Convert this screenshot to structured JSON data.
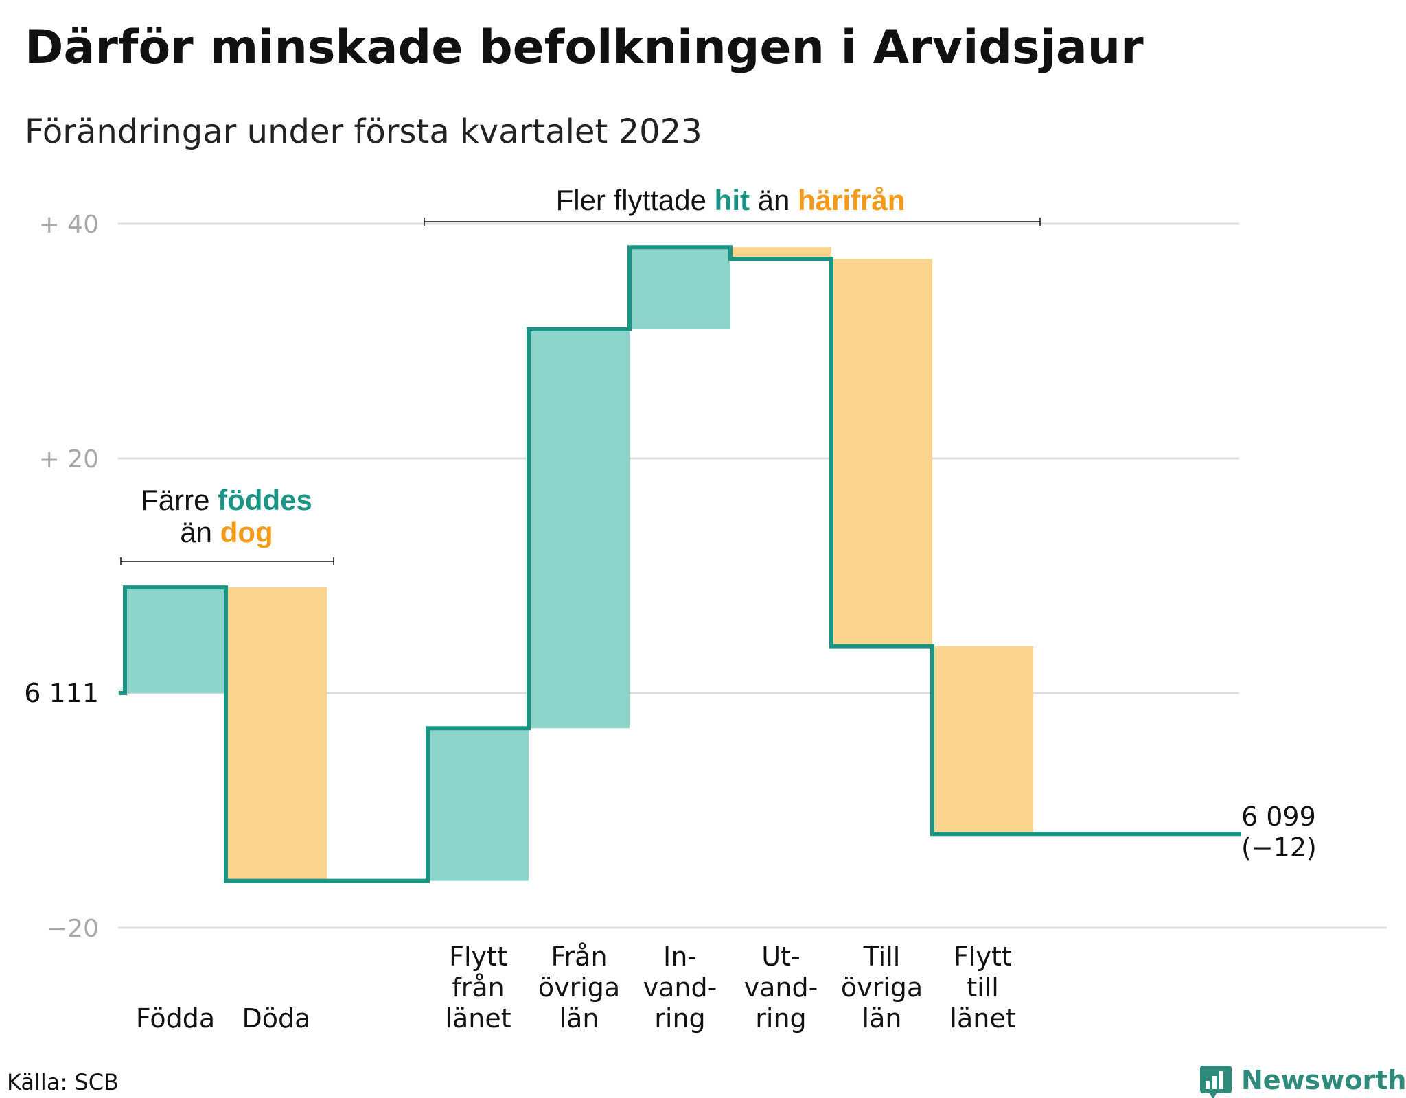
{
  "title": "Därför minskade befolkningen i Arvidsjaur",
  "subtitle": "Förändringar under första kvartalet 2023",
  "source": "Källa: SCB",
  "brand": "Newsworthy",
  "colors": {
    "positive_fill": "#8dd4cb",
    "negative_fill": "#fbd58d",
    "line": "#1a9485",
    "accent_teal": "#1a9485",
    "accent_orange": "#f29b1b",
    "grid": "#dddddd"
  },
  "annotations": {
    "natural": {
      "line1_pre": "Färre ",
      "line1_bold": "föddes",
      "line2_pre": "än ",
      "line2_bold": "dog"
    },
    "migration": {
      "pre": "Fler flyttade ",
      "bold1": "hit",
      "mid": " än ",
      "bold2": "härifrån"
    }
  },
  "chart_data": {
    "type": "waterfall",
    "start_label": "6 111",
    "start_value": 6111,
    "end_label_line1": "6 099",
    "end_label_line2": "(−12)",
    "y_ticks": [
      {
        "value": 40,
        "label": "+ 40"
      },
      {
        "value": 20,
        "label": "+ 20"
      },
      {
        "value": -20,
        "label": "−20"
      }
    ],
    "ylim": [
      -20,
      40
    ],
    "steps": [
      {
        "category": [
          "Födda"
        ],
        "change": 9
      },
      {
        "category": [
          "Döda"
        ],
        "change": -25
      },
      {
        "category": [
          ""
        ],
        "change": 0
      },
      {
        "category": [
          "Flytt",
          "från",
          "länet"
        ],
        "change": 13
      },
      {
        "category": [
          "Från",
          "övriga",
          "län"
        ],
        "change": 34
      },
      {
        "category": [
          "In-",
          "vand-",
          "ring"
        ],
        "change": 7
      },
      {
        "category": [
          "Ut-",
          "vand-",
          "ring"
        ],
        "change": -1
      },
      {
        "category": [
          "Till",
          "övriga",
          "län"
        ],
        "change": -33
      },
      {
        "category": [
          "Flytt",
          "till",
          "länet"
        ],
        "change": -16
      }
    ]
  }
}
